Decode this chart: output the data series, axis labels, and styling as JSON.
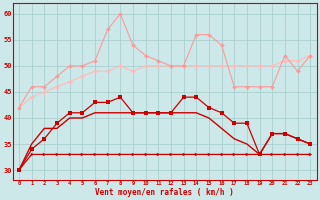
{
  "x": [
    0,
    1,
    2,
    3,
    4,
    5,
    6,
    7,
    8,
    9,
    10,
    11,
    12,
    13,
    14,
    15,
    16,
    17,
    18,
    19,
    20,
    21,
    22,
    23
  ],
  "line1": [
    30,
    33,
    33,
    33,
    33,
    33,
    33,
    33,
    33,
    33,
    33,
    33,
    33,
    33,
    33,
    33,
    33,
    33,
    33,
    33,
    33,
    33,
    33,
    33
  ],
  "line2": [
    30,
    34,
    36,
    39,
    41,
    41,
    43,
    43,
    44,
    41,
    41,
    41,
    41,
    44,
    44,
    42,
    41,
    39,
    39,
    33,
    37,
    37,
    36,
    35
  ],
  "line3": [
    30,
    35,
    38,
    38,
    40,
    40,
    41,
    41,
    41,
    41,
    41,
    41,
    41,
    41,
    41,
    40,
    38,
    36,
    35,
    33,
    37,
    37,
    36,
    35
  ],
  "line4": [
    42,
    46,
    46,
    48,
    50,
    50,
    51,
    57,
    60,
    54,
    52,
    51,
    50,
    50,
    56,
    56,
    54,
    46,
    46,
    46,
    46,
    52,
    49,
    52
  ],
  "line5": [
    42,
    44,
    45,
    46,
    47,
    48,
    49,
    49,
    50,
    49,
    50,
    50,
    50,
    50,
    50,
    50,
    50,
    50,
    50,
    50,
    50,
    51,
    51,
    52
  ],
  "ylim": [
    28,
    62
  ],
  "yticks": [
    30,
    35,
    40,
    45,
    50,
    55,
    60
  ],
  "xlim": [
    -0.5,
    23.5
  ],
  "xlabel": "Vent moyen/en rafales ( km/h )",
  "bg_color": "#cce8e8",
  "grid_color": "#aacfcf",
  "line1_color": "#cc0000",
  "line2_color": "#cc0000",
  "line3_color": "#cc0000",
  "line4_color": "#ff9999",
  "line5_color": "#ffbbbb"
}
